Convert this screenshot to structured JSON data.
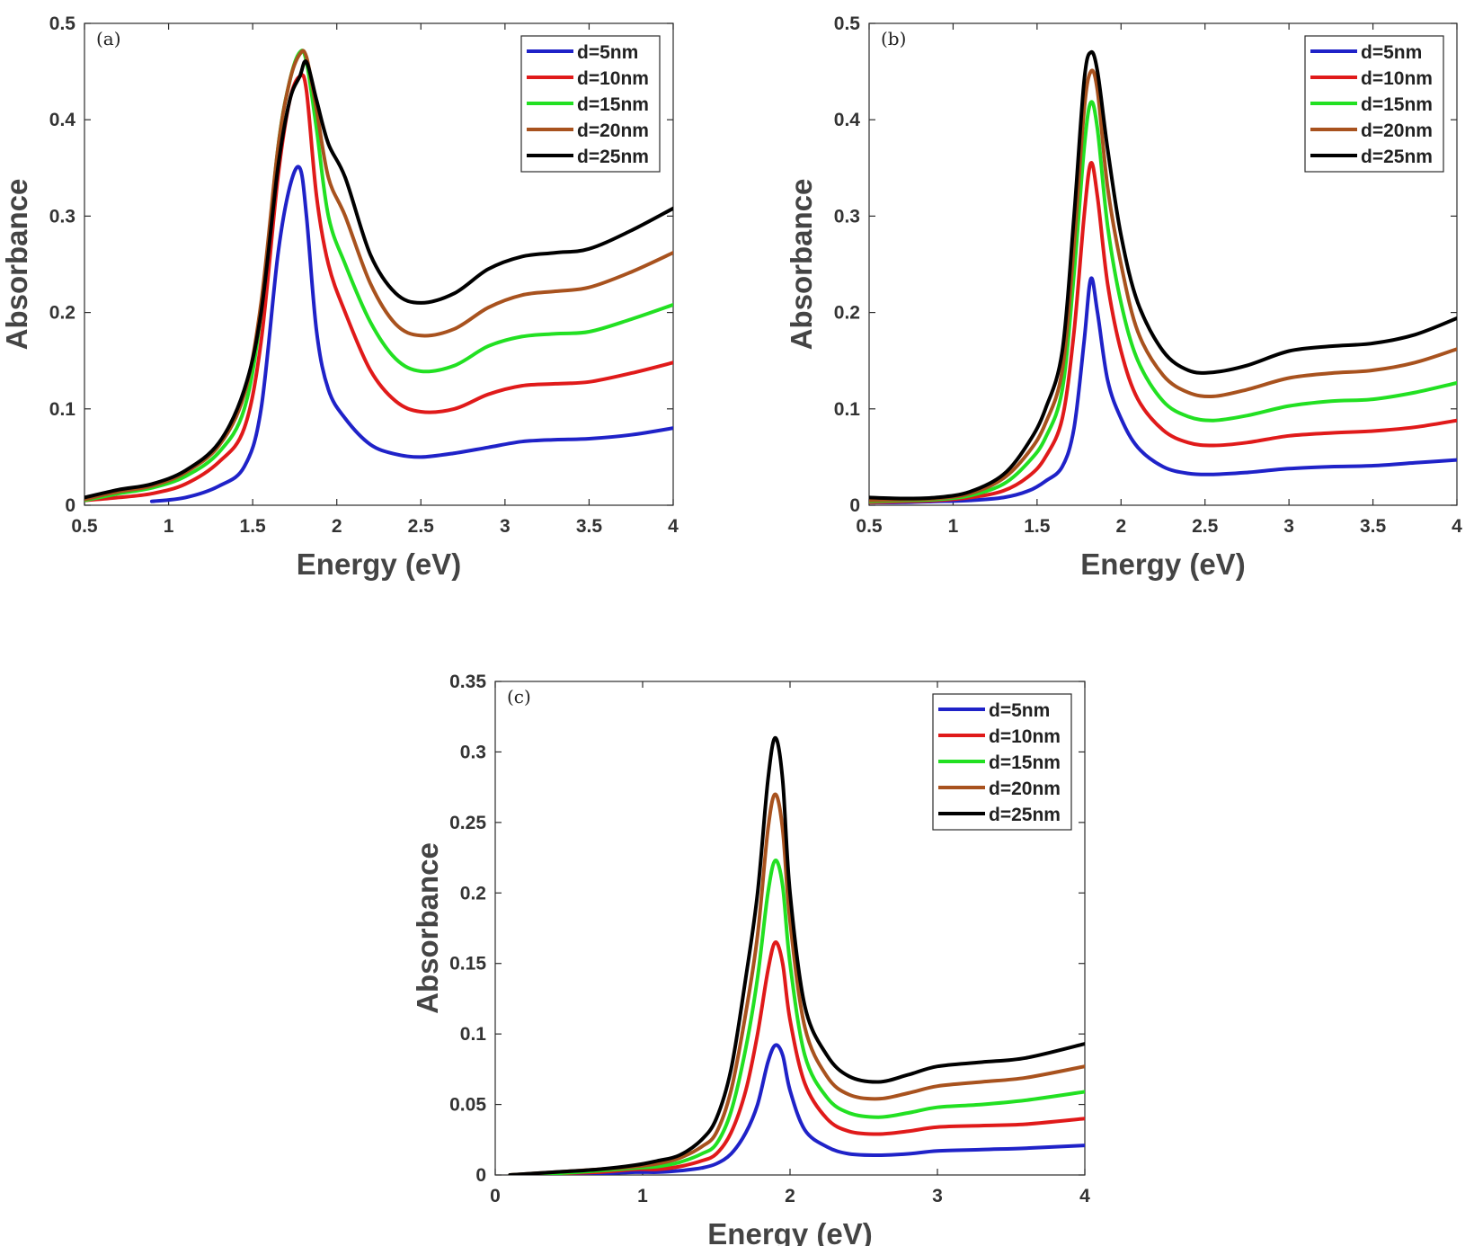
{
  "chart_data": [
    {
      "type": "line",
      "panel_label": "(a)",
      "xlabel": "Energy (eV)",
      "ylabel": "Absorbance",
      "xlim": [
        0.5,
        4
      ],
      "ylim": [
        0,
        0.5
      ],
      "xticks": [
        "0.5",
        "1",
        "1.5",
        "2",
        "2.5",
        "3",
        "3.5",
        "4"
      ],
      "xtick_values": [
        0.5,
        1,
        1.5,
        2,
        2.5,
        3,
        3.5,
        4
      ],
      "yticks": [
        "0",
        "0.1",
        "0.2",
        "0.3",
        "0.4",
        "0.5"
      ],
      "ytick_values": [
        0,
        0.1,
        0.2,
        0.3,
        0.4,
        0.5
      ],
      "legend_position": "top-right",
      "x": [
        0.5,
        0.7,
        0.9,
        1.1,
        1.3,
        1.45,
        1.55,
        1.65,
        1.72,
        1.78,
        1.82,
        1.88,
        1.95,
        2.05,
        2.2,
        2.35,
        2.5,
        2.7,
        2.9,
        3.1,
        3.3,
        3.5,
        3.75,
        4.0
      ],
      "series": [
        {
          "name": "d=5nm",
          "color": "#1f22c8",
          "values": [
            null,
            null,
            0.004,
            0.008,
            0.02,
            0.04,
            0.1,
            0.26,
            0.33,
            0.35,
            0.3,
            0.18,
            0.12,
            0.09,
            0.063,
            0.053,
            0.05,
            0.054,
            0.06,
            0.066,
            0.068,
            0.069,
            0.073,
            0.08
          ]
        },
        {
          "name": "d=10nm",
          "color": "#e01a1a",
          "values": [
            0.005,
            0.008,
            0.012,
            0.022,
            0.045,
            0.08,
            0.17,
            0.34,
            0.42,
            0.445,
            0.43,
            0.32,
            0.25,
            0.2,
            0.14,
            0.108,
            0.097,
            0.1,
            0.115,
            0.124,
            0.126,
            0.128,
            0.137,
            0.148
          ]
        },
        {
          "name": "d=15nm",
          "color": "#22e022",
          "values": [
            0.005,
            0.012,
            0.018,
            0.03,
            0.055,
            0.1,
            0.2,
            0.37,
            0.44,
            0.47,
            0.46,
            0.39,
            0.3,
            0.25,
            0.19,
            0.152,
            0.139,
            0.145,
            0.165,
            0.175,
            0.178,
            0.18,
            0.193,
            0.208
          ]
        },
        {
          "name": "d=20nm",
          "color": "#a8521e",
          "values": [
            0.006,
            0.014,
            0.02,
            0.034,
            0.062,
            0.115,
            0.21,
            0.37,
            0.44,
            0.468,
            0.465,
            0.41,
            0.34,
            0.3,
            0.23,
            0.188,
            0.176,
            0.183,
            0.205,
            0.218,
            0.222,
            0.226,
            0.242,
            0.262
          ]
        },
        {
          "name": "d=25nm",
          "color": "#000000",
          "values": [
            0.008,
            0.016,
            0.022,
            0.036,
            0.065,
            0.12,
            0.2,
            0.35,
            0.42,
            0.445,
            0.46,
            0.42,
            0.375,
            0.34,
            0.26,
            0.22,
            0.21,
            0.22,
            0.245,
            0.258,
            0.262,
            0.266,
            0.285,
            0.308
          ]
        }
      ]
    },
    {
      "type": "line",
      "panel_label": "(b)",
      "xlabel": "Energy (eV)",
      "ylabel": "Absorbance",
      "xlim": [
        0.5,
        4
      ],
      "ylim": [
        0,
        0.5
      ],
      "xticks": [
        "0.5",
        "1",
        "1.5",
        "2",
        "2.5",
        "3",
        "3.5",
        "4"
      ],
      "xtick_values": [
        0.5,
        1,
        1.5,
        2,
        2.5,
        3,
        3.5,
        4
      ],
      "yticks": [
        "0",
        "0.1",
        "0.2",
        "0.3",
        "0.4",
        "0.5"
      ],
      "ytick_values": [
        0,
        0.1,
        0.2,
        0.3,
        0.4,
        0.5
      ],
      "legend_position": "top-right",
      "x": [
        0.5,
        0.7,
        0.9,
        1.1,
        1.3,
        1.45,
        1.55,
        1.65,
        1.72,
        1.78,
        1.82,
        1.86,
        1.92,
        2.0,
        2.1,
        2.25,
        2.4,
        2.55,
        2.75,
        3.0,
        3.25,
        3.5,
        3.75,
        4.0
      ],
      "series": [
        {
          "name": "d=5nm",
          "color": "#1f22c8",
          "values": [
            0.003,
            0.003,
            0.004,
            0.005,
            0.008,
            0.015,
            0.025,
            0.04,
            0.08,
            0.17,
            0.235,
            0.2,
            0.13,
            0.09,
            0.06,
            0.04,
            0.033,
            0.032,
            0.034,
            0.038,
            0.04,
            0.041,
            0.044,
            0.047
          ]
        },
        {
          "name": "d=10nm",
          "color": "#e01a1a",
          "values": [
            0.003,
            0.004,
            0.005,
            0.008,
            0.015,
            0.03,
            0.05,
            0.09,
            0.18,
            0.3,
            0.355,
            0.32,
            0.23,
            0.16,
            0.11,
            0.078,
            0.065,
            0.062,
            0.065,
            0.072,
            0.075,
            0.077,
            0.081,
            0.088
          ]
        },
        {
          "name": "d=15nm",
          "color": "#22e022",
          "values": [
            0.004,
            0.005,
            0.006,
            0.01,
            0.022,
            0.045,
            0.07,
            0.12,
            0.24,
            0.37,
            0.418,
            0.39,
            0.29,
            0.21,
            0.15,
            0.108,
            0.092,
            0.088,
            0.093,
            0.103,
            0.108,
            0.11,
            0.117,
            0.127
          ]
        },
        {
          "name": "d=20nm",
          "color": "#a8521e",
          "values": [
            0.005,
            0.006,
            0.007,
            0.012,
            0.028,
            0.055,
            0.085,
            0.14,
            0.27,
            0.41,
            0.45,
            0.43,
            0.33,
            0.25,
            0.18,
            0.135,
            0.117,
            0.113,
            0.12,
            0.132,
            0.137,
            0.14,
            0.148,
            0.162
          ]
        },
        {
          "name": "d=25nm",
          "color": "#000000",
          "values": [
            0.008,
            0.007,
            0.008,
            0.014,
            0.032,
            0.065,
            0.1,
            0.16,
            0.3,
            0.44,
            0.47,
            0.45,
            0.37,
            0.28,
            0.21,
            0.16,
            0.14,
            0.138,
            0.145,
            0.16,
            0.165,
            0.168,
            0.177,
            0.194
          ]
        }
      ]
    },
    {
      "type": "line",
      "panel_label": "(c)",
      "xlabel": "Energy (eV)",
      "ylabel": "Absorbance",
      "xlim": [
        0,
        4
      ],
      "ylim": [
        0,
        0.35
      ],
      "xticks": [
        "0",
        "1",
        "2",
        "3",
        "4"
      ],
      "xtick_values": [
        0,
        1,
        2,
        3,
        4
      ],
      "yticks": [
        "0",
        "0.05",
        "0.1",
        "0.15",
        "0.2",
        "0.25",
        "0.3",
        "0.35"
      ],
      "ytick_values": [
        0,
        0.05,
        0.1,
        0.15,
        0.2,
        0.25,
        0.3,
        0.35
      ],
      "legend_position": "top-right",
      "x": [
        0.1,
        0.4,
        0.7,
        0.95,
        1.1,
        1.25,
        1.4,
        1.5,
        1.6,
        1.7,
        1.78,
        1.85,
        1.9,
        1.95,
        2.0,
        2.1,
        2.25,
        2.4,
        2.6,
        2.8,
        3.0,
        3.3,
        3.6,
        4.0
      ],
      "series": [
        {
          "name": "d=5nm",
          "color": "#1f22c8",
          "values": [
            0.0,
            0.0005,
            0.001,
            0.002,
            0.002,
            0.003,
            0.005,
            0.008,
            0.015,
            0.03,
            0.05,
            0.08,
            0.092,
            0.085,
            0.06,
            0.032,
            0.02,
            0.015,
            0.014,
            0.015,
            0.017,
            0.018,
            0.019,
            0.021
          ]
        },
        {
          "name": "d=10nm",
          "color": "#e01a1a",
          "values": [
            0.0,
            0.001,
            0.002,
            0.004,
            0.004,
            0.006,
            0.01,
            0.015,
            0.03,
            0.06,
            0.1,
            0.145,
            0.165,
            0.15,
            0.11,
            0.065,
            0.04,
            0.031,
            0.029,
            0.031,
            0.034,
            0.035,
            0.036,
            0.04
          ]
        },
        {
          "name": "d=15nm",
          "color": "#22e022",
          "values": [
            0.0,
            0.001,
            0.003,
            0.005,
            0.006,
            0.009,
            0.015,
            0.022,
            0.045,
            0.09,
            0.14,
            0.2,
            0.223,
            0.205,
            0.15,
            0.085,
            0.055,
            0.044,
            0.041,
            0.044,
            0.048,
            0.05,
            0.053,
            0.059
          ]
        },
        {
          "name": "d=20nm",
          "color": "#a8521e",
          "values": [
            0.0,
            0.002,
            0.004,
            0.006,
            0.008,
            0.012,
            0.02,
            0.03,
            0.06,
            0.115,
            0.17,
            0.245,
            0.27,
            0.245,
            0.18,
            0.105,
            0.07,
            0.057,
            0.054,
            0.058,
            0.063,
            0.066,
            0.069,
            0.077
          ]
        },
        {
          "name": "d=25nm",
          "color": "#000000",
          "values": [
            0.0,
            0.002,
            0.004,
            0.007,
            0.01,
            0.014,
            0.025,
            0.04,
            0.075,
            0.14,
            0.2,
            0.28,
            0.31,
            0.28,
            0.2,
            0.12,
            0.085,
            0.07,
            0.066,
            0.071,
            0.077,
            0.08,
            0.083,
            0.093
          ]
        }
      ]
    }
  ]
}
